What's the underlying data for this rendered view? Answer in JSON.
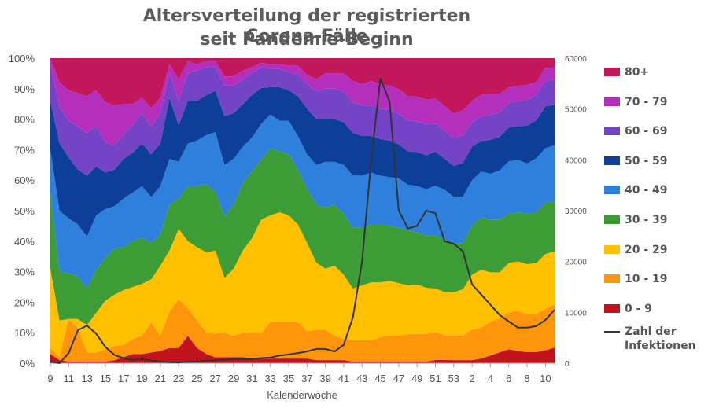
{
  "title_line1": "Altersverteilung der registrierten Corona-Fälle",
  "title_line2": "seit Pandemie-Beginn",
  "chart_data": {
    "type": "area",
    "stacked": true,
    "normalized": true,
    "title": "Altersverteilung der registrierten Corona-Fälle seit Pandemie-Beginn",
    "xlabel": "Kalenderwoche",
    "x_ticks": [
      "9",
      "11",
      "13",
      "15",
      "17",
      "19",
      "21",
      "23",
      "25",
      "27",
      "29",
      "31",
      "33",
      "35",
      "37",
      "39",
      "41",
      "43",
      "45",
      "47",
      "49",
      "51",
      "53",
      "2",
      "4",
      "6",
      "8",
      "10"
    ],
    "weeks": [
      "9",
      "10",
      "11",
      "12",
      "13",
      "14",
      "15",
      "16",
      "17",
      "18",
      "19",
      "20",
      "21",
      "22",
      "23",
      "24",
      "25",
      "26",
      "27",
      "28",
      "29",
      "30",
      "31",
      "32",
      "33",
      "34",
      "35",
      "36",
      "37",
      "38",
      "39",
      "40",
      "41",
      "42",
      "43",
      "44",
      "45",
      "46",
      "47",
      "48",
      "49",
      "50",
      "51",
      "52",
      "53",
      "1",
      "2",
      "3",
      "4",
      "5",
      "6",
      "7",
      "8",
      "9",
      "10",
      "11"
    ],
    "ylim": [
      0,
      100
    ],
    "y_ticks": [
      "0%",
      "10%",
      "20%",
      "30%",
      "40%",
      "50%",
      "60%",
      "70%",
      "80%",
      "90%",
      "100%"
    ],
    "y2lim": [
      0,
      60000
    ],
    "y2_ticks": [
      "0",
      "10000",
      "20000",
      "30000",
      "40000",
      "50000",
      "60000"
    ],
    "grid": false,
    "legend_position": "right",
    "series": [
      {
        "name": "0 - 9",
        "color": "#c0131c",
        "values": [
          3,
          1,
          0.5,
          0.5,
          0.5,
          0.5,
          0.5,
          1,
          2,
          3,
          3,
          3.5,
          4,
          5,
          5,
          9,
          5,
          3,
          2,
          2,
          2,
          2,
          1.5,
          1.5,
          1.5,
          1.5,
          1.5,
          1.5,
          1.5,
          1,
          1,
          1,
          1,
          0.5,
          0.5,
          0.5,
          0.5,
          0.5,
          0.5,
          0.5,
          0.5,
          0.5,
          1,
          1,
          1,
          1,
          1,
          1.5,
          2.5,
          3.5,
          4.5,
          4,
          3.5,
          3.5,
          4,
          5
        ]
      },
      {
        "name": "10 - 19",
        "color": "#ff950a",
        "values": [
          2,
          1,
          14,
          11,
          3,
          3,
          4,
          4.5,
          4,
          5,
          6,
          10,
          5,
          12,
          16,
          9,
          9,
          7,
          8,
          8,
          7,
          8,
          8.5,
          8.5,
          12,
          12,
          12,
          12,
          9,
          10,
          10,
          8,
          7,
          7,
          7,
          7,
          8,
          8.5,
          8.5,
          9,
          9,
          9,
          9,
          8,
          8,
          8,
          10,
          10,
          11,
          11,
          12,
          13,
          12,
          12,
          13,
          14
        ]
      },
      {
        "name": "20 - 29",
        "color": "#ffc000",
        "values": [
          26,
          12,
          0,
          3,
          9,
          13,
          16,
          17,
          18,
          17,
          17,
          14,
          23,
          20,
          23,
          22,
          24,
          26,
          28,
          18,
          22,
          27,
          31,
          38,
          35,
          36,
          35,
          32,
          29,
          22,
          20,
          23,
          21,
          17,
          18,
          19,
          18,
          18,
          17,
          16,
          16,
          15,
          14,
          14,
          14,
          15,
          18,
          19,
          16,
          15,
          16,
          16,
          16,
          16,
          17,
          17
        ]
      },
      {
        "name": "30 - 39",
        "color": "#3d9c35",
        "values": [
          25,
          16,
          15,
          14,
          12,
          14,
          14,
          15,
          14,
          15,
          15,
          12,
          10,
          15,
          10,
          18,
          20,
          22,
          20,
          20,
          21,
          22,
          22,
          20,
          22,
          20,
          20,
          18,
          18,
          19,
          20,
          20,
          20,
          20,
          19,
          19,
          19,
          18,
          18,
          18,
          17,
          17,
          17,
          17,
          16,
          15,
          16,
          17,
          17,
          17,
          16,
          16,
          16,
          16,
          16,
          16
        ]
      },
      {
        "name": "40 - 49",
        "color": "#2f80dc",
        "values": [
          14,
          20,
          18,
          17,
          17,
          18,
          16,
          14,
          16,
          16,
          17,
          15,
          16,
          15,
          12,
          14,
          15,
          16,
          20,
          17,
          15,
          12,
          11,
          12,
          11,
          10,
          11,
          11,
          11,
          13,
          15,
          14,
          16,
          17,
          17,
          17,
          16,
          16,
          16,
          15,
          15,
          15,
          16,
          16,
          15,
          15,
          15,
          15,
          15,
          16,
          17,
          17,
          16,
          17,
          17,
          18
        ]
      },
      {
        "name": "50 - 59",
        "color": "#0e3f98",
        "values": [
          16,
          22,
          20,
          18,
          20,
          16,
          12,
          12,
          13,
          13,
          14,
          14,
          14,
          20,
          12,
          14,
          13,
          13,
          14,
          16,
          15,
          14,
          14,
          12,
          9,
          11,
          10,
          13,
          15,
          15,
          14,
          14,
          14,
          14,
          13,
          12,
          12,
          12,
          11,
          11,
          11,
          11,
          11,
          10,
          10,
          11,
          11,
          10,
          11,
          11,
          11,
          11,
          12,
          12,
          13,
          13
        ]
      },
      {
        "name": "60 - 69",
        "color": "#7443c6",
        "values": [
          12,
          12,
          12,
          14,
          14,
          13,
          10,
          8,
          8,
          9,
          10,
          9,
          10,
          8,
          8,
          9,
          10,
          9,
          8,
          10,
          9,
          8,
          7,
          7,
          6,
          6,
          6,
          7,
          8,
          9,
          10,
          10,
          10,
          10,
          10,
          10,
          10,
          10,
          10,
          10,
          10,
          10,
          9,
          9,
          9,
          9,
          8,
          8,
          8,
          8,
          8,
          8,
          8,
          8,
          8,
          8
        ]
      },
      {
        "name": "70 - 79",
        "color": "#b52fbd",
        "values": [
          2,
          8,
          10,
          11,
          12,
          12,
          13,
          13,
          10,
          7,
          5,
          6,
          5,
          3,
          7,
          4,
          2,
          2,
          2,
          3,
          3,
          3,
          2,
          1.5,
          1.5,
          1.5,
          2,
          3,
          3,
          4,
          5,
          5,
          6,
          7,
          7,
          8,
          8,
          8,
          8,
          8,
          8,
          8,
          8,
          8,
          8,
          8,
          7,
          7,
          7,
          6,
          5,
          5,
          5,
          4,
          4,
          4
        ]
      },
      {
        "name": "80+",
        "color": "#c2185b",
        "values": [
          0,
          8,
          10.5,
          11.5,
          12.5,
          10.5,
          14.5,
          15.5,
          15,
          15,
          13,
          16.5,
          13,
          2,
          7,
          1,
          2,
          1,
          1,
          6,
          6,
          4,
          3,
          1.5,
          2,
          2,
          2.5,
          2.5,
          5.5,
          7,
          5,
          5,
          5,
          7.5,
          8.5,
          7.5,
          8.5,
          9,
          10,
          12.5,
          12.5,
          13.5,
          13,
          15.5,
          18,
          17,
          14,
          12,
          11.5,
          11.5,
          9.5,
          9,
          8.5,
          7.5,
          3,
          3
        ]
      }
    ],
    "line_series": {
      "name": "Zahl der Infektionen",
      "axis": "right",
      "color": "#333333",
      "values": [
        300,
        0,
        2000,
        6500,
        7400,
        5800,
        3200,
        1600,
        1000,
        600,
        800,
        500,
        350,
        200,
        150,
        300,
        300,
        500,
        600,
        700,
        800,
        800,
        800,
        1000,
        1100,
        1500,
        1700,
        2000,
        2300,
        2800,
        2800,
        2300,
        3600,
        9000,
        20000,
        40000,
        56000,
        51500,
        30000,
        26500,
        27000,
        30000,
        29500,
        24000,
        23500,
        22000,
        15500,
        13500,
        11500,
        9500,
        8200,
        7000,
        7000,
        7300,
        8500,
        10500
      ]
    }
  }
}
